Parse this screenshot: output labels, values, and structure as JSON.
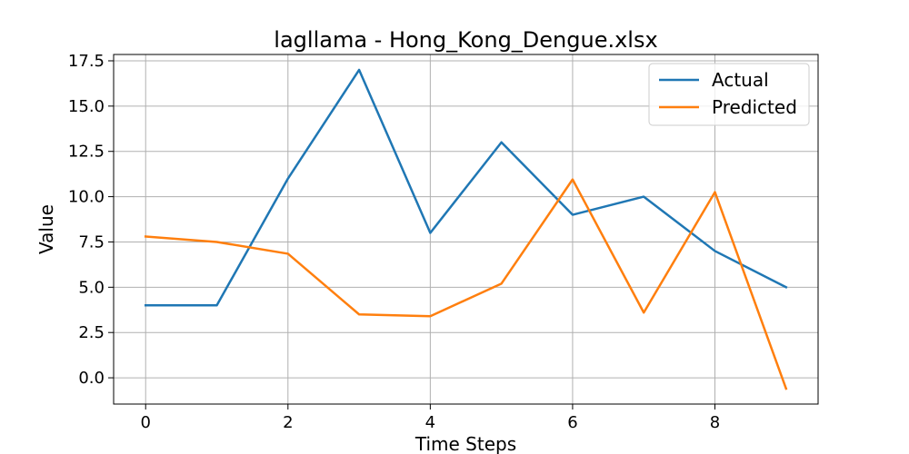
{
  "chart_data": {
    "type": "line",
    "title": "lagllama - Hong_Kong_Dengue.xlsx",
    "xlabel": "Time Steps",
    "ylabel": "Value",
    "x": [
      0,
      1,
      2,
      3,
      4,
      5,
      6,
      7,
      8,
      9
    ],
    "xlim": [
      -0.45,
      9.45
    ],
    "ylim": [
      -1.45,
      17.85
    ],
    "xticks": [
      0,
      2,
      4,
      6,
      8
    ],
    "xtick_labels": [
      "0",
      "2",
      "4",
      "6",
      "8"
    ],
    "yticks": [
      0,
      2.5,
      5,
      7.5,
      10,
      12.5,
      15,
      17.5
    ],
    "ytick_labels": [
      "0.0",
      "2.5",
      "5.0",
      "7.5",
      "10.0",
      "12.5",
      "15.0",
      "17.5"
    ],
    "grid": true,
    "legend_position": "top-right",
    "series": [
      {
        "name": "Actual",
        "color": "#1f77b4",
        "values": [
          4,
          4,
          11,
          17,
          8,
          13,
          9,
          10,
          7,
          5
        ]
      },
      {
        "name": "Predicted",
        "color": "#ff7f0e",
        "values": [
          7.8,
          7.5,
          6.85,
          3.5,
          3.4,
          5.2,
          10.95,
          3.6,
          10.25,
          -0.6
        ]
      }
    ]
  }
}
